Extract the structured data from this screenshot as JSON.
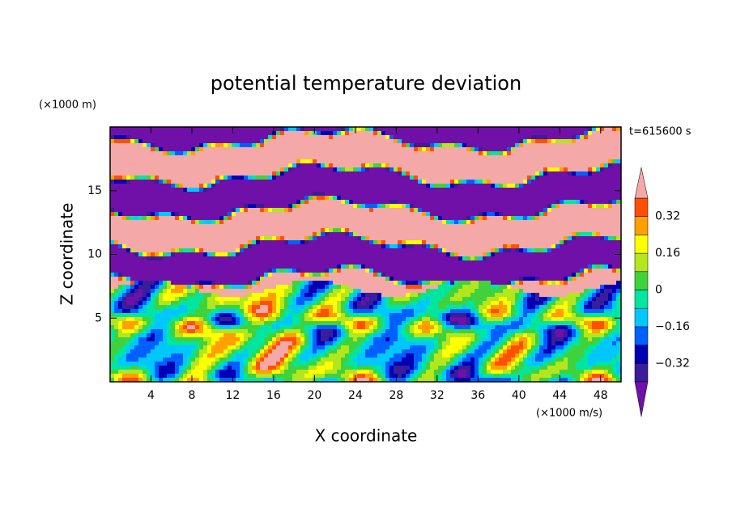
{
  "chart_data": {
    "type": "contour",
    "title": "potential temperature deviation",
    "x_label": "X coordinate",
    "y_label": "Z coordinate",
    "x_unit": "(×1000 m/s)",
    "y_unit": "(×1000 m)",
    "time_label": "t=615600 s",
    "xlim": [
      0,
      50
    ],
    "ylim": [
      0,
      20
    ],
    "xticks": [
      4,
      8,
      12,
      16,
      20,
      24,
      28,
      32,
      36,
      40,
      44,
      48
    ],
    "yticks": [
      5,
      10,
      15
    ],
    "colorbar": {
      "levels": [
        -0.4,
        -0.32,
        -0.24,
        -0.16,
        -0.08,
        0,
        0.08,
        0.16,
        0.24,
        0.32,
        0.4
      ],
      "colors": [
        "#3a1d9a",
        "#0000b4",
        "#0060ff",
        "#00c8ff",
        "#00e6a0",
        "#40d23c",
        "#b4e61e",
        "#ffff00",
        "#ffa000",
        "#ff5000"
      ],
      "under_color": "#7010a8",
      "over_color": "#f4a8a8",
      "ticks": [
        {
          "value": 0.32,
          "label": "0.32"
        },
        {
          "value": 0.16,
          "label": "0.16"
        },
        0,
        {
          "value": -0.16,
          "label": "−0.16"
        },
        {
          "value": -0.32,
          "label": "−0.32"
        }
      ]
    }
  }
}
